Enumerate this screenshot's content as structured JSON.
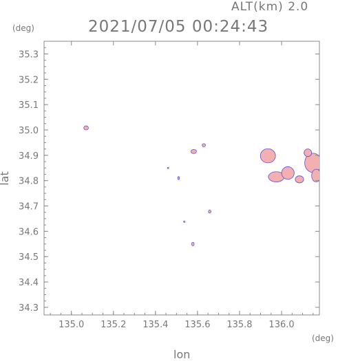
{
  "header": {
    "alt_label": "ALT(km) 2.0",
    "timestamp": "2021/07/05 00:24:43"
  },
  "chart_data": {
    "type": "scatter",
    "title": "2021/07/05 00:24:43",
    "xlabel": "lon",
    "ylabel": "lat",
    "x_unit": "(deg)",
    "y_unit": "(deg)",
    "xlim": [
      134.87,
      136.18
    ],
    "ylim": [
      34.27,
      35.35
    ],
    "x_ticks": [
      135.0,
      135.2,
      135.4,
      135.6,
      135.8,
      136.0
    ],
    "x_tick_labels": [
      "135.0",
      "135.2",
      "135.4",
      "135.6",
      "135.8",
      "136.0"
    ],
    "y_ticks": [
      34.3,
      34.4,
      34.5,
      34.6,
      34.7,
      34.8,
      34.9,
      35.0,
      35.1,
      35.2,
      35.3
    ],
    "y_tick_labels": [
      "34.3",
      "34.4",
      "34.5",
      "34.6",
      "34.7",
      "34.8",
      "34.9",
      "35.0",
      "35.1",
      "35.2",
      "35.3"
    ],
    "grid": false,
    "colors": {
      "echo_fill": "#f4b0b0",
      "echo_edge": "#5a4fd6",
      "axis": "#888888"
    },
    "echoes": [
      {
        "lon": 135.07,
        "lat": 35.008,
        "r_lon": 0.011,
        "r_lat": 0.008
      },
      {
        "lon": 135.582,
        "lat": 34.915,
        "r_lon": 0.013,
        "r_lat": 0.008
      },
      {
        "lon": 135.63,
        "lat": 34.94,
        "r_lon": 0.008,
        "r_lat": 0.006
      },
      {
        "lon": 135.46,
        "lat": 34.85,
        "r_lon": 0.003,
        "r_lat": 0.003
      },
      {
        "lon": 135.51,
        "lat": 34.81,
        "r_lon": 0.004,
        "r_lat": 0.006
      },
      {
        "lon": 135.658,
        "lat": 34.678,
        "r_lon": 0.006,
        "r_lat": 0.006
      },
      {
        "lon": 135.537,
        "lat": 34.638,
        "r_lon": 0.003,
        "r_lat": 0.002
      },
      {
        "lon": 135.578,
        "lat": 34.55,
        "r_lon": 0.006,
        "r_lat": 0.007
      },
      {
        "lon": 135.935,
        "lat": 34.898,
        "r_lon": 0.036,
        "r_lat": 0.028
      },
      {
        "lon": 135.975,
        "lat": 34.815,
        "r_lon": 0.038,
        "r_lat": 0.02
      },
      {
        "lon": 136.03,
        "lat": 34.83,
        "r_lon": 0.03,
        "r_lat": 0.025
      },
      {
        "lon": 136.085,
        "lat": 34.805,
        "r_lon": 0.02,
        "r_lat": 0.014
      },
      {
        "lon": 136.15,
        "lat": 34.87,
        "r_lon": 0.04,
        "r_lat": 0.038
      },
      {
        "lon": 136.165,
        "lat": 34.82,
        "r_lon": 0.022,
        "r_lat": 0.025
      },
      {
        "lon": 136.125,
        "lat": 34.91,
        "r_lon": 0.018,
        "r_lat": 0.015
      }
    ]
  }
}
